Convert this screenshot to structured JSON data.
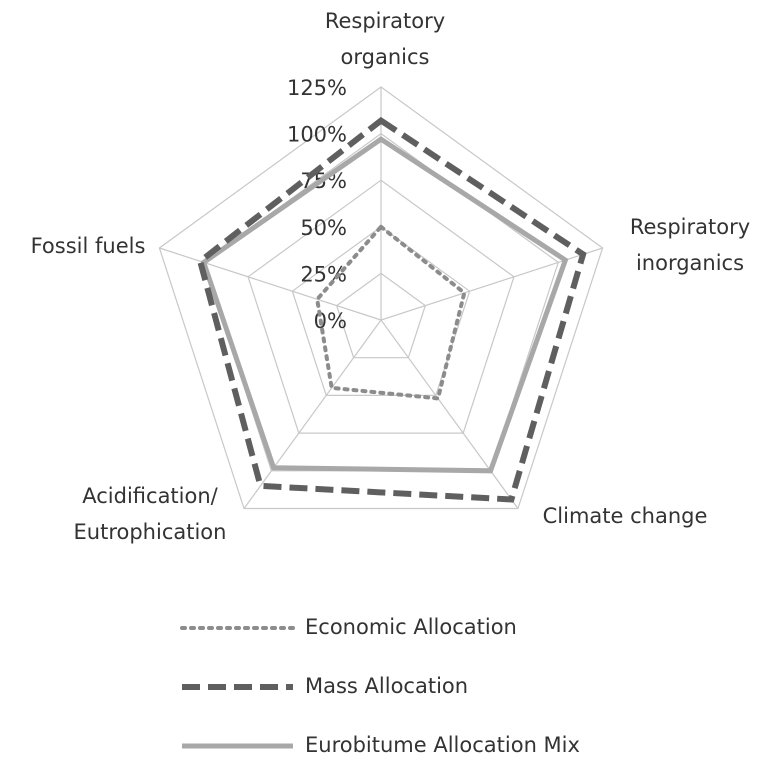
{
  "chart_data": {
    "type": "radar",
    "categories": [
      [
        "Respiratory",
        "organics"
      ],
      [
        "Respiratory",
        "inorganics"
      ],
      [
        "Climate change"
      ],
      [
        "Acidification/",
        "Eutrophication"
      ],
      [
        "Fossil fuels"
      ]
    ],
    "ylim": [
      0,
      125
    ],
    "yticks": [
      {
        "value": 0,
        "label": "0%"
      },
      {
        "value": 25,
        "label": "25%"
      },
      {
        "value": 50,
        "label": "50%"
      },
      {
        "value": 75,
        "label": "75%"
      },
      {
        "value": 100,
        "label": "100%"
      },
      {
        "value": 125,
        "label": "125%"
      }
    ],
    "grid": true,
    "series": [
      {
        "name": "Economic Allocation",
        "color": "#8c8c8c",
        "style": "dotted",
        "values": [
          50,
          47,
          52,
          45,
          36
        ]
      },
      {
        "name": "Mass Allocation",
        "color": "#5f5f5f",
        "style": "dashed",
        "values": [
          107,
          114,
          119,
          110,
          102
        ]
      },
      {
        "name": "Eurobitume Allocation Mix",
        "color": "#a8a8a8",
        "style": "solid",
        "values": [
          97,
          104,
          100,
          98,
          100
        ]
      }
    ]
  }
}
